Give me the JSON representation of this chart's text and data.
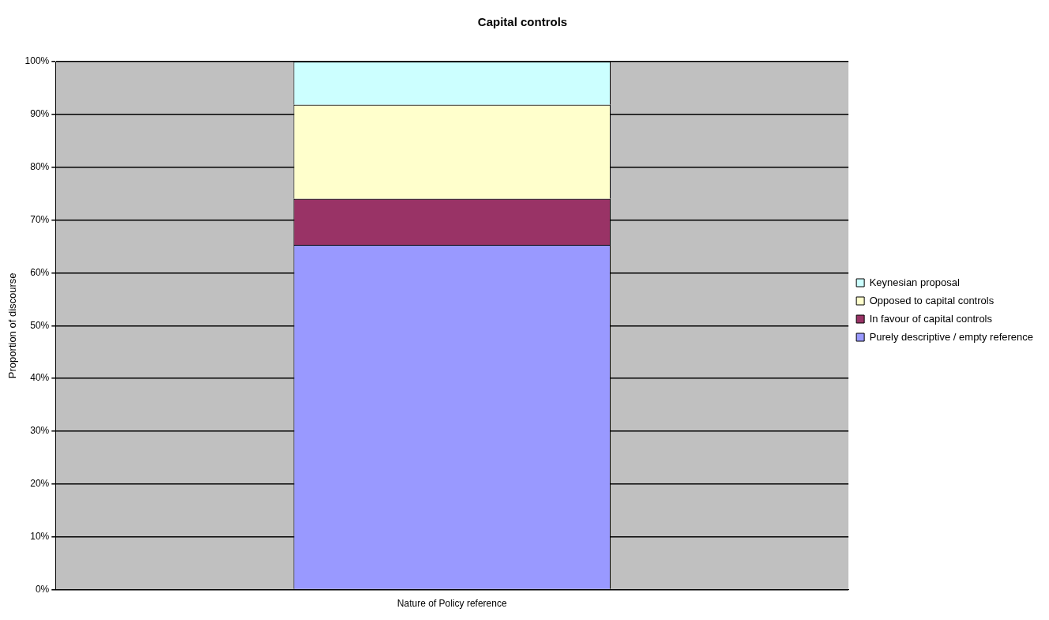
{
  "chart_data": {
    "type": "bar",
    "title": "Capital controls",
    "ylabel": "Proportion of discourse",
    "categories": [
      "Nature of Policy reference"
    ],
    "stacked": true,
    "series": [
      {
        "name": "Purely descriptive / empty reference",
        "color": "#9999ff",
        "values": [
          65.3
        ]
      },
      {
        "name": "In favour of capital controls",
        "color": "#993366",
        "values": [
          8.7
        ]
      },
      {
        "name": "Opposed to capital controls",
        "color": "#ffffcc",
        "values": [
          17.8
        ]
      },
      {
        "name": "Keynesian proposal",
        "color": "#ccffff",
        "values": [
          8.2
        ]
      }
    ],
    "ylim": [
      0,
      100
    ],
    "yticks": [
      {
        "value": 0,
        "label": "0%"
      },
      {
        "value": 10,
        "label": "10%"
      },
      {
        "value": 20,
        "label": "20%"
      },
      {
        "value": 30,
        "label": "30%"
      },
      {
        "value": 40,
        "label": "40%"
      },
      {
        "value": 50,
        "label": "50%"
      },
      {
        "value": 60,
        "label": "60%"
      },
      {
        "value": 70,
        "label": "70%"
      },
      {
        "value": 80,
        "label": "80%"
      },
      {
        "value": 90,
        "label": "90%"
      },
      {
        "value": 100,
        "label": "100%"
      }
    ],
    "grid": "y",
    "legend": "right"
  }
}
